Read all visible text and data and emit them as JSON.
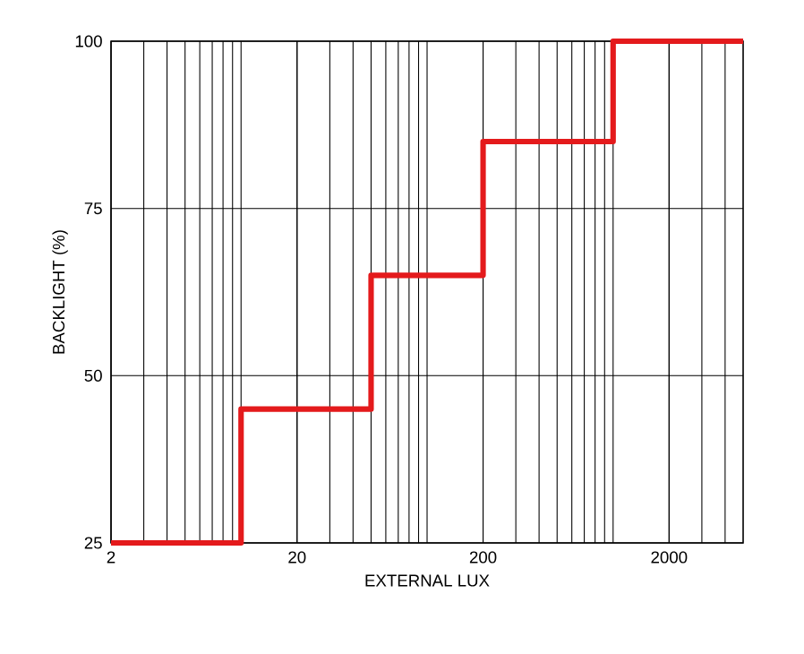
{
  "chart_data": {
    "type": "step",
    "xlabel": "EXTERNAL LUX",
    "ylabel": "BACKLIGHT (%)",
    "x": [
      2,
      10,
      50,
      200,
      1000,
      5000
    ],
    "values": [
      25,
      45,
      65,
      85,
      100,
      100
    ],
    "color": "#e41a1c",
    "log": "x",
    "xlim": [
      2,
      5000
    ],
    "ylim": [
      25,
      100
    ],
    "xticks": [
      2,
      20,
      200,
      2000
    ],
    "yticks": [
      25,
      50,
      75,
      100
    ],
    "grid": true
  }
}
